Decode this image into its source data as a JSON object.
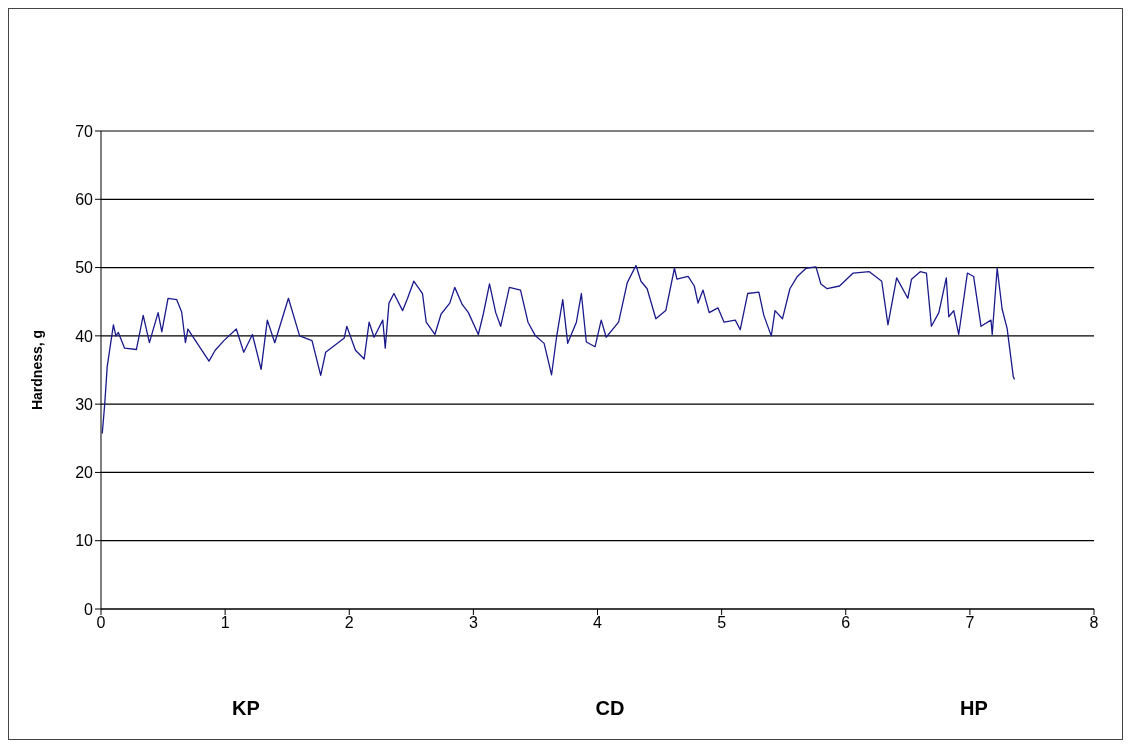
{
  "chart_data": {
    "type": "line",
    "ylabel": "Hardness, g",
    "x": [
      0.01,
      0.03,
      0.05,
      0.1,
      0.12,
      0.14,
      0.19,
      0.285,
      0.34,
      0.39,
      0.46,
      0.49,
      0.54,
      0.61,
      0.65,
      0.68,
      0.7,
      0.87,
      0.92,
      0.99,
      1.09,
      1.15,
      1.22,
      1.29,
      1.34,
      1.4,
      1.51,
      1.6,
      1.7,
      1.77,
      1.81,
      1.96,
      1.98,
      2.05,
      2.12,
      2.16,
      2.2,
      2.27,
      2.29,
      2.32,
      2.36,
      2.43,
      2.47,
      2.52,
      2.59,
      2.62,
      2.69,
      2.74,
      2.81,
      2.85,
      2.91,
      2.96,
      3.04,
      3.08,
      3.13,
      3.18,
      3.22,
      3.29,
      3.38,
      3.44,
      3.5,
      3.57,
      3.63,
      3.67,
      3.72,
      3.76,
      3.83,
      3.87,
      3.91,
      3.98,
      4.03,
      4.07,
      4.17,
      4.24,
      4.31,
      4.35,
      4.4,
      4.47,
      4.55,
      4.62,
      4.64,
      4.73,
      4.78,
      4.81,
      4.85,
      4.9,
      4.97,
      5.02,
      5.11,
      5.15,
      5.21,
      5.3,
      5.34,
      5.4,
      5.43,
      5.49,
      5.55,
      5.61,
      5.68,
      5.76,
      5.8,
      5.85,
      5.95,
      6.06,
      6.19,
      6.29,
      6.34,
      6.41,
      6.5,
      6.53,
      6.6,
      6.65,
      6.69,
      6.75,
      6.81,
      6.83,
      6.87,
      6.91,
      6.98,
      7.03,
      7.09,
      7.17,
      7.18,
      7.22,
      7.26,
      7.3,
      7.35,
      7.36
    ],
    "series": [
      {
        "color": "#1a1a8c",
        "values": [
          25.7,
          30,
          35.5,
          41.6,
          40,
          40.5,
          38.2,
          38,
          43,
          39,
          43.4,
          40.6,
          45.5,
          45.3,
          43.5,
          39,
          41,
          36.3,
          37.9,
          39.3,
          41,
          37.6,
          40.2,
          35.1,
          42.3,
          39,
          45.5,
          40,
          39.3,
          34.2,
          37.6,
          39.7,
          41.4,
          37.9,
          36.6,
          42,
          39.8,
          42.3,
          38.2,
          44.8,
          46.2,
          43.7,
          45.5,
          48,
          46.2,
          42,
          40.2,
          43.2,
          44.8,
          47.1,
          44.6,
          43.4,
          40.2,
          43.2,
          47.6,
          43.4,
          41.4,
          47.1,
          46.7,
          42,
          40,
          38.9,
          34.3,
          39.8,
          45.3,
          38.9,
          42,
          46.2,
          39.1,
          38.4,
          42.3,
          39.8,
          42,
          47.8,
          50.3,
          48,
          46.9,
          42.5,
          43.7,
          49.9,
          48.3,
          48.7,
          47.3,
          44.8,
          46.7,
          43.4,
          44.1,
          42,
          42.3,
          40.9,
          46.2,
          46.4,
          43,
          40,
          43.7,
          42.5,
          46.9,
          48.7,
          49.9,
          50.1,
          47.6,
          46.9,
          47.3,
          49.2,
          49.4,
          48,
          41.6,
          48.5,
          45.5,
          48.3,
          49.4,
          49.2,
          41.4,
          43.4,
          48.5,
          42.8,
          43.7,
          40.2,
          49.2,
          48.7,
          41.4,
          42.3,
          40.2,
          49.9,
          43.9,
          41.1,
          34,
          33.6
        ]
      }
    ],
    "xlim": [
      0,
      8
    ],
    "xticks": [
      0,
      1,
      2,
      3,
      4,
      5,
      6,
      7,
      8
    ],
    "ylim": [
      0,
      70
    ],
    "yticks": [
      0,
      10,
      20,
      30,
      40,
      50,
      60,
      70
    ],
    "grid": "y",
    "marker": "none",
    "line_style": "solid",
    "annotations": [
      "KP",
      "CD",
      "HP"
    ]
  }
}
